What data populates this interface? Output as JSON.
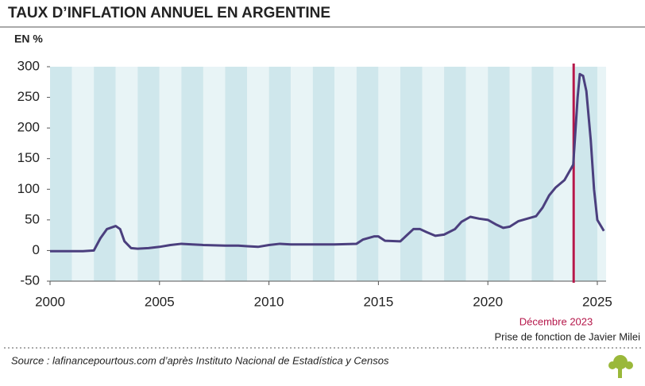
{
  "chart_data": {
    "type": "line",
    "title": "TAUX D’INFLATION ANNUEL EN ARGENTINE",
    "y_label": "EN %",
    "source": "Source : lafinancepourtous.com d’après Instituto Nacional de Estadística y Censos",
    "x": [
      2000,
      2001,
      2001.5,
      2002,
      2002.3,
      2002.6,
      2003,
      2003.2,
      2003.4,
      2003.7,
      2004,
      2004.5,
      2005,
      2005.5,
      2006,
      2006.5,
      2007,
      2008,
      2008.6,
      2009,
      2009.5,
      2010,
      2010.5,
      2011,
      2012,
      2013,
      2014,
      2014.3,
      2014.8,
      2015,
      2015.3,
      2016,
      2016.3,
      2016.6,
      2016.9,
      2017.2,
      2017.6,
      2018,
      2018.5,
      2018.8,
      2019.2,
      2019.6,
      2020,
      2020.4,
      2020.7,
      2021,
      2021.4,
      2021.8,
      2022.2,
      2022.5,
      2022.8,
      2023.1,
      2023.5,
      2023.9,
      2024.1,
      2024.2,
      2024.35,
      2024.5,
      2024.7,
      2024.85,
      2025,
      2025.3
    ],
    "series": [
      {
        "name": "Taux d’inflation annuel",
        "color": "#4b3f7e",
        "values": [
          -1,
          -1,
          -1,
          0,
          20,
          35,
          40,
          35,
          15,
          4,
          3,
          4,
          6,
          9,
          11,
          10,
          9,
          8,
          8,
          7,
          6,
          9,
          11,
          10,
          10,
          10,
          11,
          18,
          23,
          23,
          16,
          15,
          25,
          35,
          35,
          30,
          24,
          26,
          35,
          47,
          55,
          52,
          50,
          42,
          37,
          39,
          48,
          52,
          56,
          70,
          90,
          103,
          115,
          140,
          250,
          288,
          285,
          260,
          180,
          100,
          50,
          32
        ]
      }
    ],
    "xlim": [
      2000,
      2025.4
    ],
    "xticks": [
      2000,
      2005,
      2010,
      2015,
      2020,
      2025
    ],
    "ylim": [
      -50,
      300
    ],
    "yticks": [
      -50,
      0,
      50,
      100,
      150,
      200,
      250,
      300
    ],
    "band_colors": [
      "#cfe7ec",
      "#e8f4f6"
    ],
    "annotation": {
      "x": 2023.92,
      "date": "Décembre 2023",
      "text": "Prise de fonction de Javier Milei",
      "color": "#b5174a"
    }
  }
}
